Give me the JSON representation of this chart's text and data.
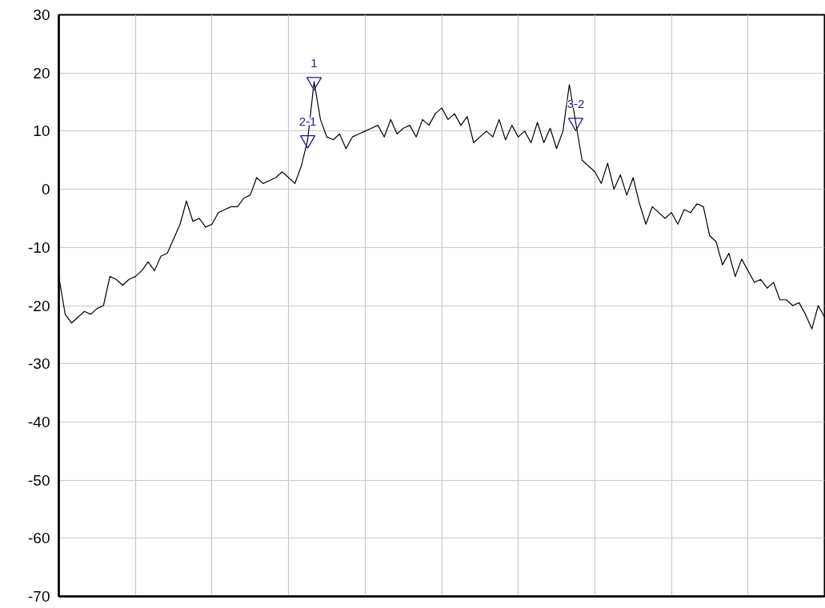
{
  "chart_data": {
    "type": "line",
    "categories": [
      null,
      null,
      null,
      null,
      null,
      null,
      null,
      null,
      null,
      null,
      null,
      null,
      null,
      null,
      null,
      null,
      null,
      null,
      null,
      null,
      null,
      null,
      null,
      null,
      null,
      null,
      null,
      null,
      null,
      null,
      null,
      null,
      null,
      null,
      null,
      null,
      null,
      null,
      null,
      null,
      null,
      null,
      null,
      null,
      null,
      null,
      null,
      null,
      null,
      null,
      null,
      null,
      null,
      null,
      null,
      null,
      null,
      null,
      null,
      null,
      null,
      null,
      null,
      null,
      null,
      null,
      null,
      null,
      null,
      null,
      null,
      null,
      null,
      null,
      null,
      null,
      null,
      null,
      null,
      null,
      null,
      null,
      null,
      null,
      null,
      null,
      null,
      null,
      null,
      null,
      null,
      null,
      null,
      null,
      null,
      null,
      null,
      null,
      null,
      null,
      null,
      null,
      null,
      null,
      null,
      null,
      null,
      null,
      null,
      null,
      null,
      null,
      null,
      null,
      null,
      null,
      null,
      null,
      null,
      null,
      null
    ],
    "series": [
      {
        "color": "#000000",
        "values": [
          -15,
          -21.5,
          -23,
          -22,
          -21,
          -21.5,
          -20.5,
          -20,
          -15,
          -15.5,
          -16.5,
          -15.5,
          -15,
          -14,
          -12.5,
          -14,
          -11.5,
          -11,
          -8.5,
          -6,
          -2,
          -5.5,
          -5,
          -6.5,
          -6,
          -4,
          -3.5,
          -3,
          -3,
          -1.5,
          -1,
          2,
          1,
          1.5,
          2,
          3,
          2,
          1,
          4,
          8.5,
          18.5,
          12,
          9,
          8.5,
          9.5,
          7,
          9,
          9.5,
          10,
          10.5,
          11,
          9,
          12,
          9.5,
          10.5,
          11,
          9,
          12,
          11,
          13,
          14,
          12,
          13,
          11,
          12.5,
          8,
          9,
          10,
          9,
          12,
          8.5,
          11,
          9,
          10,
          8,
          11.5,
          8,
          10.5,
          7,
          10,
          18,
          11.5,
          5,
          4,
          3,
          1,
          4.5,
          0,
          2.5,
          -1,
          2,
          -2.5,
          -6,
          -3,
          -4,
          -5,
          -4,
          -6,
          -3.5,
          -4,
          -2.5,
          -3,
          -8,
          -9,
          -13,
          -11,
          -15,
          -12,
          -14,
          -16,
          -15.5,
          -17,
          -16,
          -19,
          -19,
          -20,
          -19.5,
          -21.5,
          -24,
          -20,
          -22
        ]
      },
      {
        "type": "scatter",
        "marker": "triangle",
        "color": "#1a1a8c",
        "values": [
          null,
          null,
          null,
          null,
          null,
          null,
          null,
          null,
          null,
          null,
          null,
          null,
          null,
          null,
          null,
          null,
          null,
          null,
          null,
          null,
          null,
          null,
          null,
          null,
          null,
          null,
          null,
          null,
          null,
          null,
          null,
          null,
          null,
          null,
          null,
          null,
          null,
          null,
          null,
          8.5,
          18.5,
          null,
          null,
          null,
          null,
          null,
          null,
          null,
          null,
          null,
          null,
          null,
          null,
          null,
          null,
          null,
          null,
          null,
          null,
          null,
          null,
          null,
          null,
          null,
          null,
          null,
          null,
          null,
          null,
          null,
          null,
          null,
          null,
          null,
          null,
          null,
          null,
          null,
          null,
          null,
          null,
          11.5,
          null,
          null,
          null,
          null,
          null,
          null,
          null,
          null,
          null,
          null,
          null,
          null,
          null,
          null,
          null,
          null,
          null,
          null,
          null,
          null,
          null,
          null,
          null,
          null,
          null,
          null,
          null,
          null,
          null,
          null,
          null,
          null,
          null,
          null,
          null,
          null,
          null,
          null,
          null
        ]
      }
    ],
    "annotations": [
      {
        "text": "2-1",
        "y": 8.5
      },
      {
        "text": "1",
        "y": 18.5
      },
      {
        "text": "3-2",
        "y": 11.5
      }
    ],
    "ylim": [
      -70,
      30
    ],
    "yticks": [
      -70,
      -60,
      -50,
      -40,
      -30,
      -20,
      -10,
      0,
      10,
      20,
      30
    ],
    "grid": true,
    "tick_labels": "y"
  }
}
